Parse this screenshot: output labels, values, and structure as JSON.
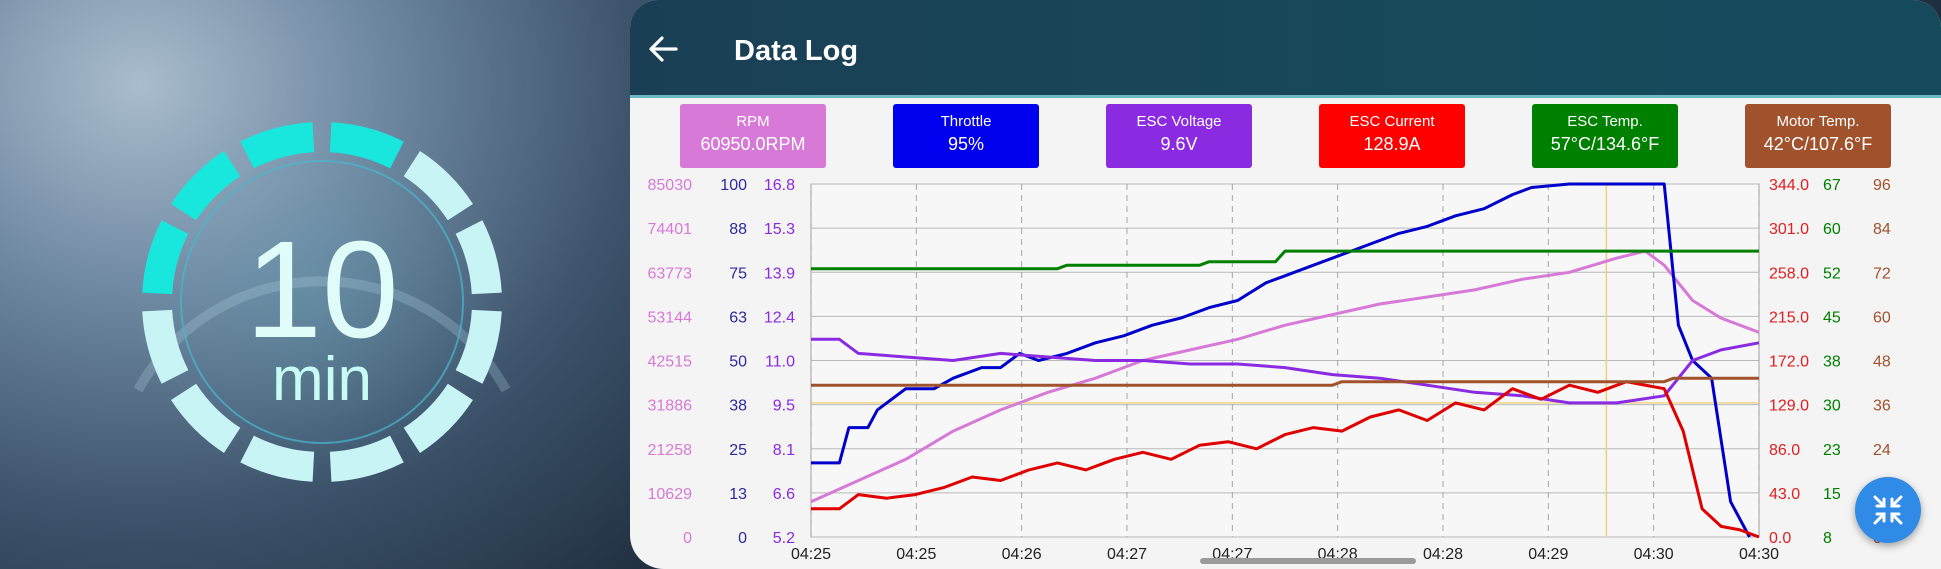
{
  "timer": {
    "number": "10",
    "unit": "min"
  },
  "app": {
    "title": "Data Log"
  },
  "cards": [
    {
      "label": "RPM",
      "value": "60950.0RPM",
      "color": "#d77ad7"
    },
    {
      "label": "Throttle",
      "value": "95%",
      "color": "#0000ee"
    },
    {
      "label": "ESC Voltage",
      "value": "9.6V",
      "color": "#8a2be2"
    },
    {
      "label": "ESC Current",
      "value": "128.9A",
      "color": "#ff0000"
    },
    {
      "label": "ESC Temp.",
      "value": "57°C/134.6°F",
      "color": "#008000"
    },
    {
      "label": "Motor Temp.",
      "value": "42°C/107.6°F",
      "color": "#a0522d"
    }
  ],
  "chart_data": {
    "type": "line",
    "x_ticks": [
      "04:25",
      "04:25",
      "04:26",
      "04:27",
      "04:27",
      "04:28",
      "04:28",
      "04:29",
      "04:30",
      "04:30"
    ],
    "left_axes": [
      {
        "name": "rpm_axis",
        "color": "#d77ad7",
        "ticks": [
          "85030",
          "74401",
          "63773",
          "53144",
          "42515",
          "31886",
          "21258",
          "10629",
          "0"
        ]
      },
      {
        "name": "throttle_axis",
        "color": "#2b2b9b",
        "ticks": [
          "100",
          "88",
          "75",
          "63",
          "50",
          "38",
          "25",
          "13",
          "0"
        ]
      },
      {
        "name": "voltage_axis",
        "color": "#8a2be2",
        "ticks": [
          "16.8",
          "15.3",
          "13.9",
          "12.4",
          "11.0",
          "9.5",
          "8.1",
          "6.6",
          "5.2"
        ]
      }
    ],
    "right_axes": [
      {
        "name": "current_axis",
        "color": "#e02020",
        "ticks": [
          "344.0",
          "301.0",
          "258.0",
          "215.0",
          "172.0",
          "129.0",
          "86.0",
          "43.0",
          "0.0"
        ]
      },
      {
        "name": "esc_temp_axis",
        "color": "#008000",
        "ticks": [
          "67",
          "60",
          "52",
          "45",
          "38",
          "30",
          "23",
          "15",
          "8"
        ]
      },
      {
        "name": "motor_temp_axis",
        "color": "#a0522d",
        "ticks": [
          "96",
          "84",
          "72",
          "60",
          "48",
          "36",
          "24",
          "12",
          "0"
        ]
      }
    ],
    "grid": true,
    "cursor_x": 0.839,
    "series": [
      {
        "color": "#d77ad7",
        "values": [
          [
            0,
            0.1
          ],
          [
            0.05,
            0.16
          ],
          [
            0.1,
            0.22
          ],
          [
            0.15,
            0.3
          ],
          [
            0.2,
            0.36
          ],
          [
            0.25,
            0.41
          ],
          [
            0.3,
            0.45
          ],
          [
            0.35,
            0.5
          ],
          [
            0.4,
            0.53
          ],
          [
            0.45,
            0.56
          ],
          [
            0.5,
            0.6
          ],
          [
            0.55,
            0.63
          ],
          [
            0.6,
            0.66
          ],
          [
            0.65,
            0.68
          ],
          [
            0.7,
            0.7
          ],
          [
            0.75,
            0.73
          ],
          [
            0.8,
            0.75
          ],
          [
            0.85,
            0.79
          ],
          [
            0.88,
            0.81
          ],
          [
            0.9,
            0.77
          ],
          [
            0.93,
            0.67
          ],
          [
            0.96,
            0.62
          ],
          [
            1.0,
            0.58
          ]
        ]
      },
      {
        "color": "#0000cc",
        "values": [
          [
            0,
            0.21
          ],
          [
            0.03,
            0.21
          ],
          [
            0.04,
            0.31
          ],
          [
            0.06,
            0.31
          ],
          [
            0.07,
            0.36
          ],
          [
            0.09,
            0.4
          ],
          [
            0.1,
            0.42
          ],
          [
            0.12,
            0.42
          ],
          [
            0.13,
            0.42
          ],
          [
            0.15,
            0.45
          ],
          [
            0.18,
            0.48
          ],
          [
            0.2,
            0.48
          ],
          [
            0.22,
            0.52
          ],
          [
            0.24,
            0.5
          ],
          [
            0.27,
            0.52
          ],
          [
            0.3,
            0.55
          ],
          [
            0.33,
            0.57
          ],
          [
            0.36,
            0.6
          ],
          [
            0.39,
            0.62
          ],
          [
            0.42,
            0.65
          ],
          [
            0.45,
            0.67
          ],
          [
            0.48,
            0.72
          ],
          [
            0.5,
            0.74
          ],
          [
            0.53,
            0.77
          ],
          [
            0.56,
            0.8
          ],
          [
            0.59,
            0.83
          ],
          [
            0.62,
            0.86
          ],
          [
            0.65,
            0.88
          ],
          [
            0.68,
            0.91
          ],
          [
            0.71,
            0.93
          ],
          [
            0.74,
            0.97
          ],
          [
            0.76,
            0.99
          ],
          [
            0.8,
            1.0
          ],
          [
            0.9,
            1.0
          ],
          [
            0.915,
            0.6
          ],
          [
            0.93,
            0.5
          ],
          [
            0.95,
            0.45
          ],
          [
            0.97,
            0.1
          ],
          [
            0.99,
            0.0
          ]
        ]
      },
      {
        "color": "#8a2be2",
        "values": [
          [
            0,
            0.56
          ],
          [
            0.03,
            0.56
          ],
          [
            0.05,
            0.52
          ],
          [
            0.1,
            0.51
          ],
          [
            0.15,
            0.5
          ],
          [
            0.2,
            0.52
          ],
          [
            0.25,
            0.51
          ],
          [
            0.3,
            0.5
          ],
          [
            0.35,
            0.5
          ],
          [
            0.4,
            0.49
          ],
          [
            0.45,
            0.49
          ],
          [
            0.5,
            0.48
          ],
          [
            0.55,
            0.46
          ],
          [
            0.6,
            0.45
          ],
          [
            0.65,
            0.43
          ],
          [
            0.7,
            0.41
          ],
          [
            0.75,
            0.4
          ],
          [
            0.8,
            0.38
          ],
          [
            0.85,
            0.38
          ],
          [
            0.9,
            0.4
          ],
          [
            0.93,
            0.5
          ],
          [
            0.96,
            0.53
          ],
          [
            1.0,
            0.55
          ]
        ]
      },
      {
        "color": "#e00000",
        "values": [
          [
            0,
            0.08
          ],
          [
            0.03,
            0.08
          ],
          [
            0.05,
            0.12
          ],
          [
            0.08,
            0.11
          ],
          [
            0.11,
            0.12
          ],
          [
            0.14,
            0.14
          ],
          [
            0.17,
            0.17
          ],
          [
            0.2,
            0.16
          ],
          [
            0.23,
            0.19
          ],
          [
            0.26,
            0.21
          ],
          [
            0.29,
            0.19
          ],
          [
            0.32,
            0.22
          ],
          [
            0.35,
            0.24
          ],
          [
            0.38,
            0.22
          ],
          [
            0.41,
            0.26
          ],
          [
            0.44,
            0.27
          ],
          [
            0.47,
            0.25
          ],
          [
            0.5,
            0.29
          ],
          [
            0.53,
            0.31
          ],
          [
            0.56,
            0.3
          ],
          [
            0.59,
            0.34
          ],
          [
            0.62,
            0.36
          ],
          [
            0.65,
            0.33
          ],
          [
            0.68,
            0.38
          ],
          [
            0.71,
            0.36
          ],
          [
            0.74,
            0.42
          ],
          [
            0.77,
            0.39
          ],
          [
            0.8,
            0.43
          ],
          [
            0.83,
            0.41
          ],
          [
            0.86,
            0.44
          ],
          [
            0.9,
            0.42
          ],
          [
            0.92,
            0.3
          ],
          [
            0.94,
            0.08
          ],
          [
            0.96,
            0.03
          ],
          [
            0.98,
            0.02
          ],
          [
            1.0,
            0.0
          ]
        ]
      },
      {
        "color": "#008000",
        "values": [
          [
            0,
            0.76
          ],
          [
            0.26,
            0.76
          ],
          [
            0.27,
            0.77
          ],
          [
            0.41,
            0.77
          ],
          [
            0.42,
            0.78
          ],
          [
            0.49,
            0.78
          ],
          [
            0.5,
            0.81
          ],
          [
            0.9,
            0.81
          ],
          [
            1.0,
            0.81
          ]
        ]
      },
      {
        "color": "#a0522d",
        "values": [
          [
            0,
            0.43
          ],
          [
            0.55,
            0.43
          ],
          [
            0.56,
            0.44
          ],
          [
            0.9,
            0.44
          ],
          [
            0.91,
            0.45
          ],
          [
            1.0,
            0.45
          ]
        ]
      }
    ]
  }
}
